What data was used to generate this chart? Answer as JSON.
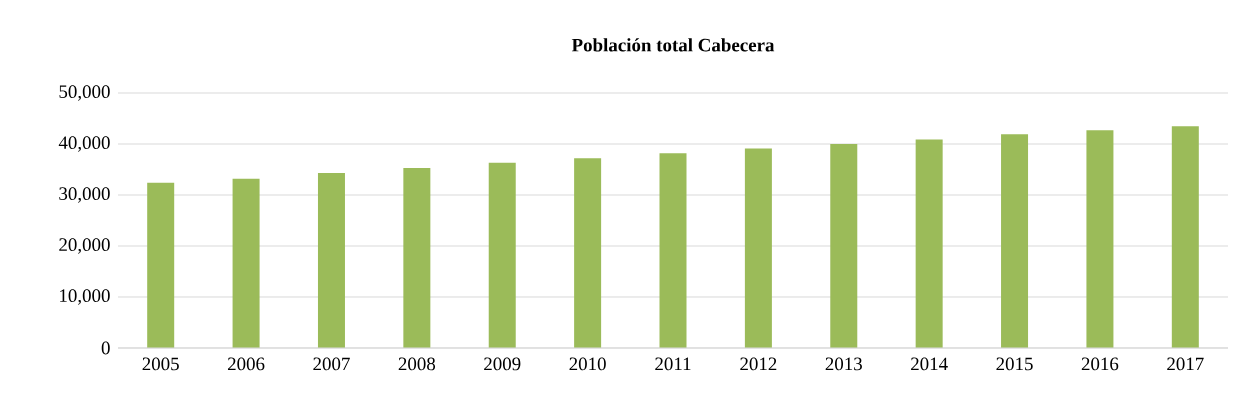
{
  "chart_data": {
    "type": "bar",
    "title": "Población total Cabecera",
    "categories": [
      "2005",
      "2006",
      "2007",
      "2008",
      "2009",
      "2010",
      "2011",
      "2012",
      "2013",
      "2014",
      "2015",
      "2016",
      "2017"
    ],
    "values": [
      32400,
      33200,
      34300,
      35300,
      36300,
      37200,
      38200,
      39100,
      40000,
      40900,
      41900,
      42700,
      43500
    ],
    "color": "#9bbb59",
    "ylim": [
      0,
      50000
    ],
    "yticks": [
      0,
      {
        "value": 10000,
        "label": "10,000"
      },
      {
        "value": 20000,
        "label": "20,000"
      },
      {
        "value": 30000,
        "label": "30,000"
      },
      {
        "value": 40000,
        "label": "40,000"
      },
      {
        "value": 50000,
        "label": "50,000"
      }
    ],
    "grid": "y"
  }
}
